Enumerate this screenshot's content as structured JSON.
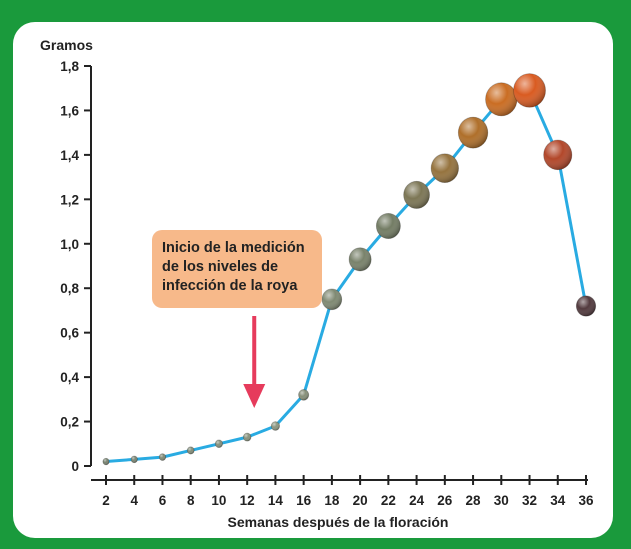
{
  "chart_data": {
    "type": "line",
    "ylabel": "Gramos",
    "xlabel": "Semanas después de la floración",
    "x": [
      2,
      4,
      6,
      8,
      10,
      12,
      14,
      16,
      18,
      20,
      22,
      24,
      26,
      28,
      30,
      32,
      34,
      36
    ],
    "values": [
      0.02,
      0.03,
      0.04,
      0.07,
      0.1,
      0.13,
      0.18,
      0.32,
      0.75,
      0.93,
      1.08,
      1.22,
      1.34,
      1.5,
      1.65,
      1.69,
      1.4,
      0.72
    ],
    "ylim": [
      0,
      1.8
    ],
    "yticks": [
      0,
      0.2,
      0.4,
      0.6,
      0.8,
      1.0,
      1.2,
      1.4,
      1.6,
      1.8
    ],
    "ytick_labels": [
      "0",
      "0,2",
      "0,4",
      "0,6",
      "0,8",
      "1,0",
      "1,2",
      "1,4",
      "1,6",
      "1,8"
    ],
    "xticks": [
      "2",
      "4",
      "6",
      "8",
      "10",
      "12",
      "14",
      "16",
      "18",
      "20",
      "22",
      "24",
      "26",
      "28",
      "30",
      "32",
      "34",
      "36"
    ],
    "grid": false,
    "colors": {
      "line": "#29abe2",
      "arrow": "#e63b5c",
      "frame": "#1a9a3c"
    },
    "annotation": {
      "lines": [
        "Inicio de la medición",
        "de los niveles de",
        "infección de la roya"
      ],
      "x": 12.5
    }
  }
}
